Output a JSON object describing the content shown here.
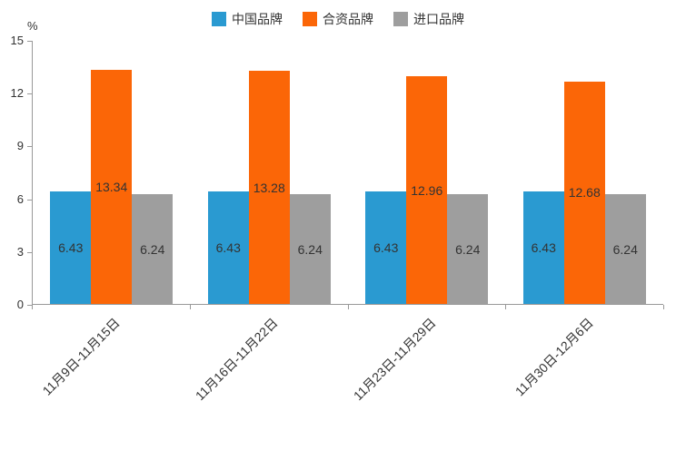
{
  "chart_data": {
    "type": "bar",
    "unit": "%",
    "categories": [
      "11月9日-11月15日",
      "11月16日-11月22日",
      "11月23日-11月29日",
      "11月30日-12月6日"
    ],
    "series": [
      {
        "name": "中国品牌",
        "color": "#2A9AD1",
        "values": [
          6.43,
          6.43,
          6.43,
          6.43
        ]
      },
      {
        "name": "合资品牌",
        "color": "#FB6607",
        "values": [
          13.34,
          13.28,
          12.96,
          12.68
        ]
      },
      {
        "name": "进口品牌",
        "color": "#9E9E9E",
        "values": [
          6.24,
          6.24,
          6.24,
          6.24
        ]
      }
    ],
    "y_ticks": [
      0,
      3,
      6,
      9,
      12,
      15
    ],
    "ylim": [
      0,
      15
    ],
    "legend_position": "top",
    "grid": false,
    "value_label_decimals": 2
  }
}
